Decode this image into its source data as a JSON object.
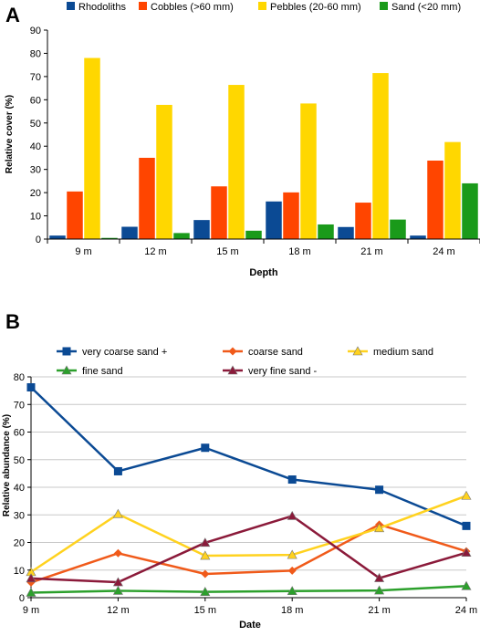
{
  "chart_data": [
    {
      "panel_label": "A",
      "type": "bar",
      "categories": [
        "9 m",
        "12 m",
        "15 m",
        "18 m",
        "21 m",
        "24 m"
      ],
      "series": [
        {
          "name": "Rhodoliths",
          "color": "#0b4a94",
          "values": [
            1.5,
            5.3,
            8.2,
            16.2,
            5.2,
            1.5
          ]
        },
        {
          "name": "Cobbles (>60 mm)",
          "color": "#ff4500",
          "values": [
            20.5,
            35.0,
            22.7,
            20.1,
            15.7,
            33.8
          ]
        },
        {
          "name": "Pebbles (20-60 mm)",
          "color": "#ffd700",
          "values": [
            78.0,
            57.8,
            66.4,
            58.4,
            71.5,
            41.8
          ]
        },
        {
          "name": "Sand (<20 mm)",
          "color": "#1a9a1a",
          "values": [
            0.5,
            2.6,
            3.6,
            6.3,
            8.4,
            24.0
          ]
        }
      ],
      "xlabel": "Depth",
      "ylabel": "Relative cover (%)",
      "ylim": [
        0,
        90
      ],
      "yticks": [
        "0",
        "10",
        "20",
        "30",
        "40",
        "50",
        "60",
        "70",
        "80",
        "90"
      ],
      "grid": false,
      "legend": "top"
    },
    {
      "panel_label": "B",
      "type": "line",
      "x": [
        "9 m",
        "12 m",
        "15 m",
        "18 m",
        "21 m",
        "24 m"
      ],
      "series": [
        {
          "name": "very coarse sand +",
          "color": "#0b4a94",
          "marker": "square",
          "values": [
            76.2,
            45.8,
            54.3,
            42.8,
            39.1,
            26.0
          ]
        },
        {
          "name": "coarse sand",
          "color": "#f05a1a",
          "marker": "diamond",
          "values": [
            5.5,
            16.1,
            8.6,
            9.8,
            26.5,
            16.8
          ]
        },
        {
          "name": "medium sand",
          "color": "#ffd21f",
          "marker": "triangle",
          "values": [
            9.3,
            30.3,
            15.2,
            15.5,
            25.2,
            36.9
          ]
        },
        {
          "name": "fine sand",
          "color": "#2ca02c",
          "marker": "triangle",
          "values": [
            1.8,
            2.5,
            2.1,
            2.4,
            2.6,
            4.2
          ]
        },
        {
          "name": "very fine sand -",
          "color": "#8b1a3a",
          "marker": "triangle",
          "values": [
            7.0,
            5.6,
            19.9,
            29.6,
            7.1,
            16.3
          ]
        }
      ],
      "xlabel": "Date",
      "ylabel": "Relative abundance (%)",
      "ylim": [
        0,
        80
      ],
      "yticks": [
        "0",
        "10",
        "20",
        "30",
        "40",
        "50",
        "60",
        "70",
        "80"
      ],
      "grid": true,
      "legend": "top"
    }
  ]
}
